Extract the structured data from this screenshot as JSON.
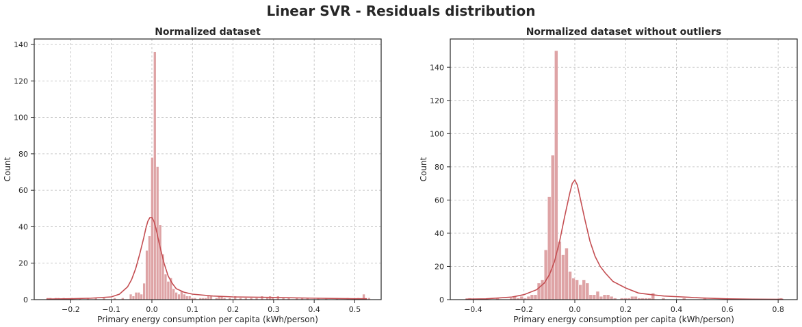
{
  "figure": {
    "title": "Linear SVR - Residuals distribution"
  },
  "colors": {
    "bar": "#dea3a5",
    "kde": "#c44e52",
    "text": "#262626"
  },
  "chart_data": [
    {
      "type": "histogram",
      "title": "Normalized dataset",
      "xlabel": "Primary energy consumption per capita (kWh/person)",
      "ylabel": "Count",
      "xlim": [
        -0.29,
        0.565
      ],
      "ylim": [
        0,
        143
      ],
      "xticks": [
        -0.2,
        -0.1,
        0.0,
        0.1,
        0.2,
        0.3,
        0.4,
        0.5
      ],
      "xtick_labels": [
        "−0.2",
        "−0.1",
        "0.0",
        "0.1",
        "0.2",
        "0.3",
        "0.4",
        "0.5"
      ],
      "yticks": [
        0,
        20,
        40,
        60,
        80,
        100,
        120,
        140
      ],
      "ytick_labels": [
        "0",
        "20",
        "40",
        "60",
        "80",
        "100",
        "120",
        "140"
      ],
      "grid": true,
      "bin_start": -0.26,
      "bin_width": 0.0066,
      "bins": [
        {
          "i": 0,
          "v": 1
        },
        {
          "i": 1,
          "v": 1
        },
        {
          "i": 3,
          "v": 1
        },
        {
          "i": 4,
          "v": 1
        },
        {
          "i": 6,
          "v": 1
        },
        {
          "i": 9,
          "v": 1
        },
        {
          "i": 12,
          "v": 1
        },
        {
          "i": 15,
          "v": 1
        },
        {
          "i": 18,
          "v": 1
        },
        {
          "i": 21,
          "v": 1
        },
        {
          "i": 25,
          "v": 1
        },
        {
          "i": 28,
          "v": 1
        },
        {
          "i": 31,
          "v": 3
        },
        {
          "i": 32,
          "v": 2
        },
        {
          "i": 33,
          "v": 4
        },
        {
          "i": 34,
          "v": 4
        },
        {
          "i": 35,
          "v": 3
        },
        {
          "i": 36,
          "v": 9
        },
        {
          "i": 37,
          "v": 27
        },
        {
          "i": 38,
          "v": 35
        },
        {
          "i": 39,
          "v": 78
        },
        {
          "i": 40,
          "v": 136
        },
        {
          "i": 41,
          "v": 73
        },
        {
          "i": 42,
          "v": 41
        },
        {
          "i": 43,
          "v": 25
        },
        {
          "i": 44,
          "v": 14
        },
        {
          "i": 45,
          "v": 10
        },
        {
          "i": 46,
          "v": 12
        },
        {
          "i": 47,
          "v": 6
        },
        {
          "i": 48,
          "v": 4
        },
        {
          "i": 49,
          "v": 3
        },
        {
          "i": 50,
          "v": 5
        },
        {
          "i": 51,
          "v": 3
        },
        {
          "i": 52,
          "v": 2
        },
        {
          "i": 53,
          "v": 2
        },
        {
          "i": 54,
          "v": 1
        },
        {
          "i": 55,
          "v": 1
        },
        {
          "i": 57,
          "v": 1
        },
        {
          "i": 58,
          "v": 1
        },
        {
          "i": 59,
          "v": 1
        },
        {
          "i": 60,
          "v": 2
        },
        {
          "i": 61,
          "v": 2
        },
        {
          "i": 63,
          "v": 1
        },
        {
          "i": 64,
          "v": 2
        },
        {
          "i": 65,
          "v": 2
        },
        {
          "i": 66,
          "v": 1
        },
        {
          "i": 68,
          "v": 1
        },
        {
          "i": 70,
          "v": 2
        },
        {
          "i": 72,
          "v": 1
        },
        {
          "i": 74,
          "v": 1
        },
        {
          "i": 76,
          "v": 1
        },
        {
          "i": 78,
          "v": 1
        },
        {
          "i": 80,
          "v": 2
        },
        {
          "i": 82,
          "v": 1
        },
        {
          "i": 83,
          "v": 2
        },
        {
          "i": 84,
          "v": 1
        },
        {
          "i": 86,
          "v": 2
        },
        {
          "i": 88,
          "v": 1
        },
        {
          "i": 90,
          "v": 1
        },
        {
          "i": 93,
          "v": 1
        },
        {
          "i": 95,
          "v": 1
        },
        {
          "i": 97,
          "v": 1
        },
        {
          "i": 101,
          "v": 1
        },
        {
          "i": 104,
          "v": 1
        },
        {
          "i": 108,
          "v": 1
        },
        {
          "i": 112,
          "v": 1
        },
        {
          "i": 116,
          "v": 1
        },
        {
          "i": 118,
          "v": 3
        },
        {
          "i": 120,
          "v": 1
        }
      ],
      "kde": {
        "x": [
          -0.26,
          -0.2,
          -0.15,
          -0.1,
          -0.08,
          -0.06,
          -0.05,
          -0.04,
          -0.03,
          -0.02,
          -0.015,
          -0.01,
          -0.005,
          0.0,
          0.005,
          0.01,
          0.015,
          0.02,
          0.03,
          0.04,
          0.05,
          0.06,
          0.08,
          0.1,
          0.15,
          0.2,
          0.3,
          0.4,
          0.5,
          0.53
        ],
        "y": [
          0.3,
          0.5,
          0.8,
          1.5,
          3,
          7,
          11,
          17,
          25,
          34,
          39,
          43,
          45,
          45,
          43,
          39,
          34,
          29,
          20,
          13,
          9,
          6,
          4,
          3,
          2,
          1.5,
          1.2,
          0.8,
          0.5,
          0.5
        ]
      }
    },
    {
      "type": "histogram",
      "title": "Normalized dataset without outliers",
      "xlabel": "Primary energy consumption per capita (kWh/person)",
      "ylabel": "Count",
      "xlim": [
        -0.49,
        0.875
      ],
      "ylim": [
        0,
        157
      ],
      "xticks": [
        -0.4,
        -0.2,
        0.0,
        0.2,
        0.4,
        0.6,
        0.8
      ],
      "xtick_labels": [
        "−0.4",
        "−0.2",
        "0.0",
        "0.2",
        "0.4",
        "0.6",
        "0.8"
      ],
      "yticks": [
        0,
        20,
        40,
        60,
        80,
        100,
        120,
        140
      ],
      "ytick_labels": [
        "0",
        "20",
        "40",
        "60",
        "80",
        "100",
        "120",
        "140"
      ],
      "grid": true,
      "bin_start": -0.42,
      "bin_width": 0.0136,
      "bins": [
        {
          "i": 0,
          "v": 1
        },
        {
          "i": 8,
          "v": 1
        },
        {
          "i": 12,
          "v": 1
        },
        {
          "i": 13,
          "v": 2
        },
        {
          "i": 14,
          "v": 1
        },
        {
          "i": 15,
          "v": 2
        },
        {
          "i": 16,
          "v": 1
        },
        {
          "i": 17,
          "v": 2
        },
        {
          "i": 18,
          "v": 3
        },
        {
          "i": 19,
          "v": 3
        },
        {
          "i": 20,
          "v": 10
        },
        {
          "i": 21,
          "v": 12
        },
        {
          "i": 22,
          "v": 30
        },
        {
          "i": 23,
          "v": 62
        },
        {
          "i": 24,
          "v": 87
        },
        {
          "i": 25,
          "v": 150
        },
        {
          "i": 26,
          "v": 35
        },
        {
          "i": 27,
          "v": 27
        },
        {
          "i": 28,
          "v": 31
        },
        {
          "i": 29,
          "v": 17
        },
        {
          "i": 30,
          "v": 13
        },
        {
          "i": 31,
          "v": 12
        },
        {
          "i": 32,
          "v": 9
        },
        {
          "i": 33,
          "v": 12
        },
        {
          "i": 34,
          "v": 10
        },
        {
          "i": 35,
          "v": 3
        },
        {
          "i": 36,
          "v": 3
        },
        {
          "i": 37,
          "v": 5
        },
        {
          "i": 38,
          "v": 2
        },
        {
          "i": 39,
          "v": 3
        },
        {
          "i": 40,
          "v": 3
        },
        {
          "i": 41,
          "v": 2
        },
        {
          "i": 42,
          "v": 1
        },
        {
          "i": 44,
          "v": 1
        },
        {
          "i": 45,
          "v": 1
        },
        {
          "i": 46,
          "v": 1
        },
        {
          "i": 47,
          "v": 2
        },
        {
          "i": 48,
          "v": 2
        },
        {
          "i": 49,
          "v": 1
        },
        {
          "i": 50,
          "v": 1
        },
        {
          "i": 51,
          "v": 1
        },
        {
          "i": 52,
          "v": 1
        },
        {
          "i": 53,
          "v": 4
        },
        {
          "i": 56,
          "v": 1
        },
        {
          "i": 62,
          "v": 1
        },
        {
          "i": 68,
          "v": 1
        },
        {
          "i": 90,
          "v": 1
        }
      ],
      "kde": {
        "x": [
          -0.43,
          -0.35,
          -0.3,
          -0.25,
          -0.2,
          -0.15,
          -0.12,
          -0.1,
          -0.08,
          -0.06,
          -0.04,
          -0.02,
          -0.01,
          0.0,
          0.01,
          0.02,
          0.04,
          0.06,
          0.08,
          0.1,
          0.12,
          0.15,
          0.2,
          0.25,
          0.3,
          0.35,
          0.4,
          0.45,
          0.5,
          0.6,
          0.7,
          0.82
        ],
        "y": [
          0.3,
          0.5,
          1,
          1.5,
          3,
          6,
          10,
          15,
          23,
          35,
          50,
          64,
          70,
          72,
          69,
          62,
          48,
          35,
          26,
          20,
          16,
          11,
          7,
          4,
          3,
          2.2,
          1.8,
          1.4,
          1,
          0.5,
          0.3,
          0.2
        ]
      }
    }
  ]
}
